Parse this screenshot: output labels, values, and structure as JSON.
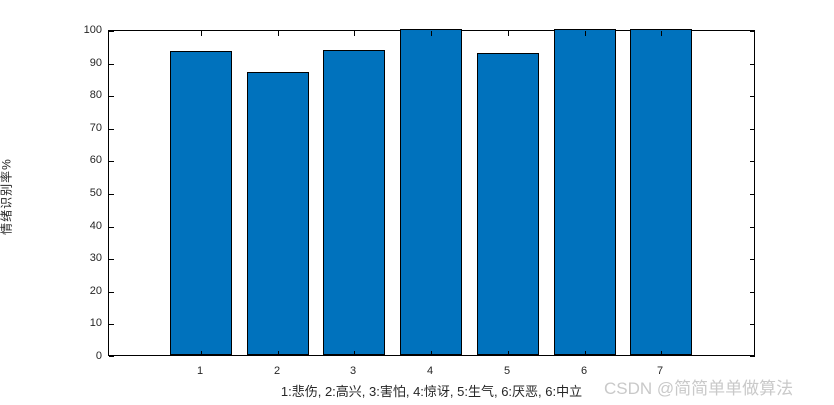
{
  "chart_data": {
    "type": "bar",
    "categories": [
      "1",
      "2",
      "3",
      "4",
      "5",
      "6",
      "7"
    ],
    "values": [
      93.3,
      86.7,
      93.6,
      100,
      92.6,
      100,
      100
    ],
    "title": "",
    "xlabel": "1:悲伤, 2:高兴, 3:害怕, 4:惊讶, 5:生气, 6:厌恶, 6:中立",
    "ylabel": "情绪识别率%",
    "ylim": [
      0,
      100
    ],
    "yticks": [
      0,
      10,
      20,
      30,
      40,
      50,
      60,
      70,
      80,
      90,
      100
    ],
    "grid": false,
    "legend": null,
    "bar_color": "#0072BD",
    "bar_edge_color": "#000000",
    "axis_color": "#000000",
    "tick_label_color": "#262626"
  },
  "watermark": {
    "text": "CSDN @简简单单做算法",
    "color": "#c9c9c9"
  }
}
